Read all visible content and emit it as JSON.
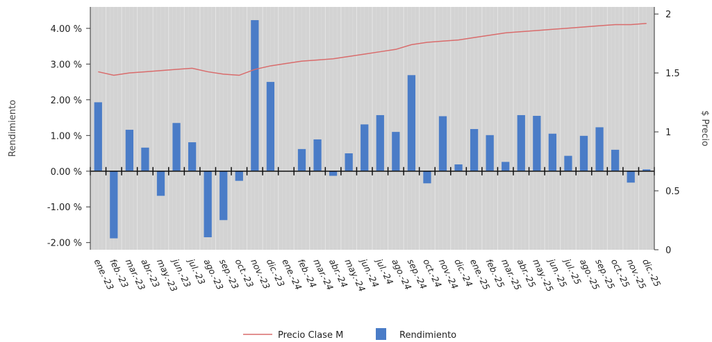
{
  "chart_data": {
    "type": "bar+line",
    "categories": [
      "ene.-23",
      "feb.-23",
      "mar.-23",
      "abr.-23",
      "may.-23",
      "jun.-23",
      "jul.-23",
      "ago.-23",
      "sep.-23",
      "oct.-23",
      "nov.-23",
      "dic.-23",
      "ene.-24",
      "feb.-24",
      "mar.-24",
      "abr.-24",
      "may.-24",
      "jun.-24",
      "jul.-24",
      "ago.-24",
      "sep.-24",
      "oct.-24",
      "nov.-24",
      "dic.-24",
      "ene.-25",
      "feb.-25",
      "mar.-25",
      "abr.-25",
      "may.-25",
      "jun.-25",
      "jul.-25",
      "ago.-25",
      "sep.-25",
      "oct.-25",
      "nov.-25",
      "dic.-25"
    ],
    "series": [
      {
        "name": "Rendimiento",
        "type": "bar",
        "axis": "left",
        "color": "#4a7cc7",
        "values": [
          1.93,
          -1.88,
          1.16,
          0.66,
          -0.69,
          1.35,
          0.81,
          -1.85,
          -1.37,
          -0.27,
          4.23,
          2.5,
          0.0,
          0.62,
          0.89,
          -0.13,
          0.5,
          1.31,
          1.57,
          1.1,
          2.69,
          -0.34,
          1.54,
          0.19,
          1.18,
          1.01,
          0.26,
          1.57,
          1.55,
          1.05,
          0.43,
          0.99,
          1.23,
          0.6,
          -0.32,
          0.05
        ]
      },
      {
        "name": "Precio Clase M",
        "type": "line",
        "axis": "right",
        "color": "#d96b6b",
        "values": [
          1.51,
          1.48,
          1.5,
          1.51,
          1.52,
          1.53,
          1.54,
          1.51,
          1.49,
          1.48,
          1.53,
          1.56,
          1.58,
          1.6,
          1.61,
          1.62,
          1.64,
          1.66,
          1.68,
          1.7,
          1.74,
          1.76,
          1.77,
          1.78,
          1.8,
          1.82,
          1.84,
          1.85,
          1.86,
          1.87,
          1.88,
          1.89,
          1.9,
          1.91,
          1.91,
          1.92
        ]
      }
    ],
    "ylabel": "Rendimiento",
    "y2label": "$ Precio",
    "ylim": [
      -2.2,
      4.6
    ],
    "y2lim": [
      0,
      2.06
    ],
    "yticks": [
      "4.00 %",
      "3.00 %",
      "2.00 %",
      "1.00 %",
      "0.00 %",
      "-1.00 %",
      "-2.00 %"
    ],
    "yticks_values": [
      4,
      3,
      2,
      1,
      0,
      -1,
      -2
    ],
    "y2ticks": [
      "2",
      "1.5",
      "1",
      "0.5",
      "0"
    ],
    "y2ticks_values": [
      2,
      1.5,
      1,
      0.5,
      0
    ],
    "plot_background": "#d3d3d3",
    "grid": true,
    "legend": {
      "placement": "bottom",
      "items": [
        {
          "label": "Precio Clase M",
          "kind": "line",
          "color": "#d96b6b"
        },
        {
          "label": "Rendimiento",
          "kind": "bar",
          "color": "#4a7cc7"
        }
      ]
    }
  }
}
